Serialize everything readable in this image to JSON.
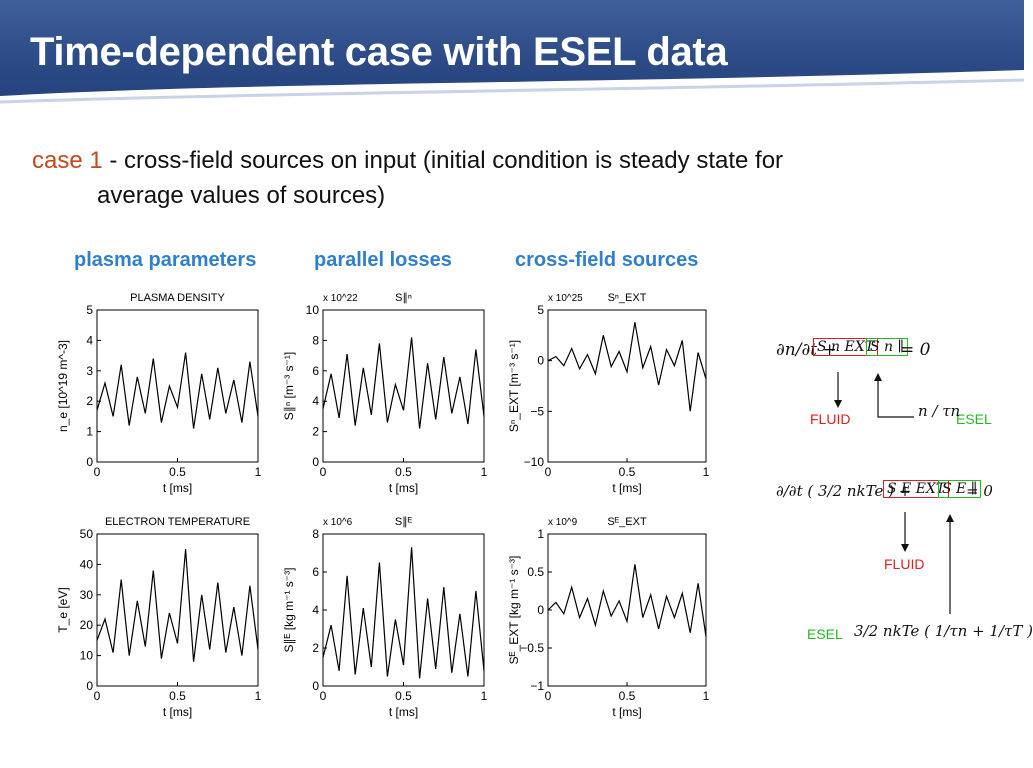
{
  "slide": {
    "title": "Time-dependent case with ESEL data",
    "case_label": "case 1",
    "case_text_1": " - cross-field sources on input (initial condition is steady state for",
    "case_text_2": "average values of sources)"
  },
  "columns": [
    "plasma parameters",
    "parallel losses",
    "cross-field sources"
  ],
  "colors": {
    "title_bg": "#2c4b86",
    "column_label": "#2f7fcf",
    "case_label": "#c8461b",
    "fluid": "#e02020",
    "esel": "#22bb22"
  },
  "equations": {
    "eq1_lhs": "∂n/∂t + ",
    "eq1_ext": "S n EXT",
    "eq1_par": "S n ∥",
    "eq1_rhs": " = 0",
    "eq1_fluid": "FLUID",
    "eq1_esel": "ESEL",
    "eq1_esel_term": "n / τn",
    "eq2_lhs": "∂/∂t ( 3/2 nkTe ) + ",
    "eq2_ext": "S E EXT",
    "eq2_par": "S E ∥",
    "eq2_rhs": " = 0",
    "eq2_fluid": "FLUID",
    "eq2_esel": "ESEL",
    "eq2_esel_term": "3/2 nkTe ( 1/τn + 1/τT )"
  },
  "chart_data": [
    {
      "type": "line",
      "title": "PLASMA DENSITY",
      "xlabel": "t [ms]",
      "ylabel": "n_e [10^19 m^-3]",
      "xlim": [
        0,
        1
      ],
      "ylim": [
        0,
        5
      ],
      "xticks": [
        "0",
        "0.5",
        "1"
      ],
      "yticks": [
        "0",
        "1",
        "2",
        "3",
        "4",
        "5"
      ],
      "exponent": "",
      "series": [
        {
          "x": [
            0,
            0.05,
            0.1,
            0.15,
            0.2,
            0.25,
            0.3,
            0.35,
            0.4,
            0.45,
            0.5,
            0.55,
            0.6,
            0.65,
            0.7,
            0.75,
            0.8,
            0.85,
            0.9,
            0.95,
            1.0
          ],
          "y": [
            1.7,
            2.6,
            1.5,
            3.2,
            1.2,
            2.8,
            1.6,
            3.4,
            1.3,
            2.5,
            1.8,
            3.6,
            1.1,
            2.9,
            1.4,
            3.1,
            1.6,
            2.7,
            1.3,
            3.3,
            1.5
          ]
        }
      ]
    },
    {
      "type": "line",
      "title": "S∥ⁿ",
      "xlabel": "t [ms]",
      "ylabel": "S∥ⁿ [m⁻³ s⁻¹]",
      "xlim": [
        0,
        1
      ],
      "ylim": [
        0,
        10
      ],
      "xticks": [
        "0",
        "0.5",
        "1"
      ],
      "yticks": [
        "0",
        "2",
        "4",
        "6",
        "8",
        "10"
      ],
      "exponent": "x 10^22",
      "series": [
        {
          "x": [
            0,
            0.05,
            0.1,
            0.15,
            0.2,
            0.25,
            0.3,
            0.35,
            0.4,
            0.45,
            0.5,
            0.55,
            0.6,
            0.65,
            0.7,
            0.75,
            0.8,
            0.85,
            0.9,
            0.95,
            1.0
          ],
          "y": [
            3.5,
            5.8,
            2.9,
            7.1,
            2.4,
            6.2,
            3.1,
            7.8,
            2.6,
            5.1,
            3.4,
            8.2,
            2.2,
            6.5,
            2.8,
            6.9,
            3.2,
            5.6,
            2.5,
            7.4,
            3.0
          ]
        }
      ]
    },
    {
      "type": "line",
      "title": "Sⁿ_EXT",
      "xlabel": "t [ms]",
      "ylabel": "Sⁿ_EXT [m⁻³ s⁻¹]",
      "xlim": [
        0,
        1
      ],
      "ylim": [
        -10,
        5
      ],
      "xticks": [
        "0",
        "0.5",
        "1"
      ],
      "yticks": [
        "−10",
        "−5",
        "0",
        "5"
      ],
      "exponent": "x 10^25",
      "series": [
        {
          "x": [
            0,
            0.05,
            0.1,
            0.15,
            0.2,
            0.25,
            0.3,
            0.35,
            0.4,
            0.45,
            0.5,
            0.55,
            0.6,
            0.65,
            0.7,
            0.75,
            0.8,
            0.85,
            0.9,
            0.95,
            1.0
          ],
          "y": [
            0.0,
            0.4,
            -0.5,
            1.2,
            -0.8,
            0.6,
            -1.3,
            2.5,
            -0.6,
            0.9,
            -1.1,
            3.8,
            -0.7,
            1.4,
            -2.4,
            1.1,
            -0.5,
            2.0,
            -5.0,
            0.8,
            -1.8
          ]
        }
      ]
    },
    {
      "type": "line",
      "title": "ELECTRON TEMPERATURE",
      "xlabel": "t [ms]",
      "ylabel": "T_e [eV]",
      "xlim": [
        0,
        1
      ],
      "ylim": [
        0,
        50
      ],
      "xticks": [
        "0",
        "0.5",
        "1"
      ],
      "yticks": [
        "0",
        "10",
        "20",
        "30",
        "40",
        "50"
      ],
      "exponent": "",
      "series": [
        {
          "x": [
            0,
            0.05,
            0.1,
            0.15,
            0.2,
            0.25,
            0.3,
            0.35,
            0.4,
            0.45,
            0.5,
            0.55,
            0.6,
            0.65,
            0.7,
            0.75,
            0.8,
            0.85,
            0.9,
            0.95,
            1.0
          ],
          "y": [
            15,
            22,
            11,
            35,
            10,
            28,
            13,
            38,
            9,
            24,
            14,
            45,
            8,
            30,
            12,
            34,
            11,
            26,
            10,
            33,
            12
          ]
        }
      ]
    },
    {
      "type": "line",
      "title": "S∥ᴱ",
      "xlabel": "t [ms]",
      "ylabel": "S∥ᴱ [kg m⁻¹ s⁻³]",
      "xlim": [
        0,
        1
      ],
      "ylim": [
        0,
        8
      ],
      "xticks": [
        "0",
        "0.5",
        "1"
      ],
      "yticks": [
        "0",
        "2",
        "4",
        "6",
        "8"
      ],
      "exponent": "x 10^6",
      "series": [
        {
          "x": [
            0,
            0.05,
            0.1,
            0.15,
            0.2,
            0.25,
            0.3,
            0.35,
            0.4,
            0.45,
            0.5,
            0.55,
            0.6,
            0.65,
            0.7,
            0.75,
            0.8,
            0.85,
            0.9,
            0.95,
            1.0
          ],
          "y": [
            1.5,
            3.2,
            0.8,
            5.8,
            0.6,
            4.1,
            1.0,
            6.5,
            0.5,
            3.5,
            1.1,
            7.3,
            0.4,
            4.6,
            0.9,
            5.2,
            0.7,
            3.8,
            0.5,
            5.0,
            0.8
          ]
        }
      ]
    },
    {
      "type": "line",
      "title": "Sᴱ_EXT",
      "xlabel": "t [ms]",
      "ylabel": "Sᴱ_EXT [kg m⁻¹ s⁻³]",
      "xlim": [
        0,
        1
      ],
      "ylim": [
        -1,
        1
      ],
      "xticks": [
        "0",
        "0.5",
        "1"
      ],
      "yticks": [
        "−1",
        "−0.5",
        "0",
        "0.5",
        "1"
      ],
      "exponent": "x 10^9",
      "series": [
        {
          "x": [
            0,
            0.05,
            0.1,
            0.15,
            0.2,
            0.25,
            0.3,
            0.35,
            0.4,
            0.45,
            0.5,
            0.55,
            0.6,
            0.65,
            0.7,
            0.75,
            0.8,
            0.85,
            0.9,
            0.95,
            1.0
          ],
          "y": [
            0.0,
            0.1,
            -0.05,
            0.3,
            -0.1,
            0.15,
            -0.2,
            0.25,
            -0.08,
            0.12,
            -0.15,
            0.6,
            -0.1,
            0.2,
            -0.25,
            0.18,
            -0.1,
            0.22,
            -0.3,
            0.35,
            -0.35
          ]
        }
      ]
    }
  ]
}
